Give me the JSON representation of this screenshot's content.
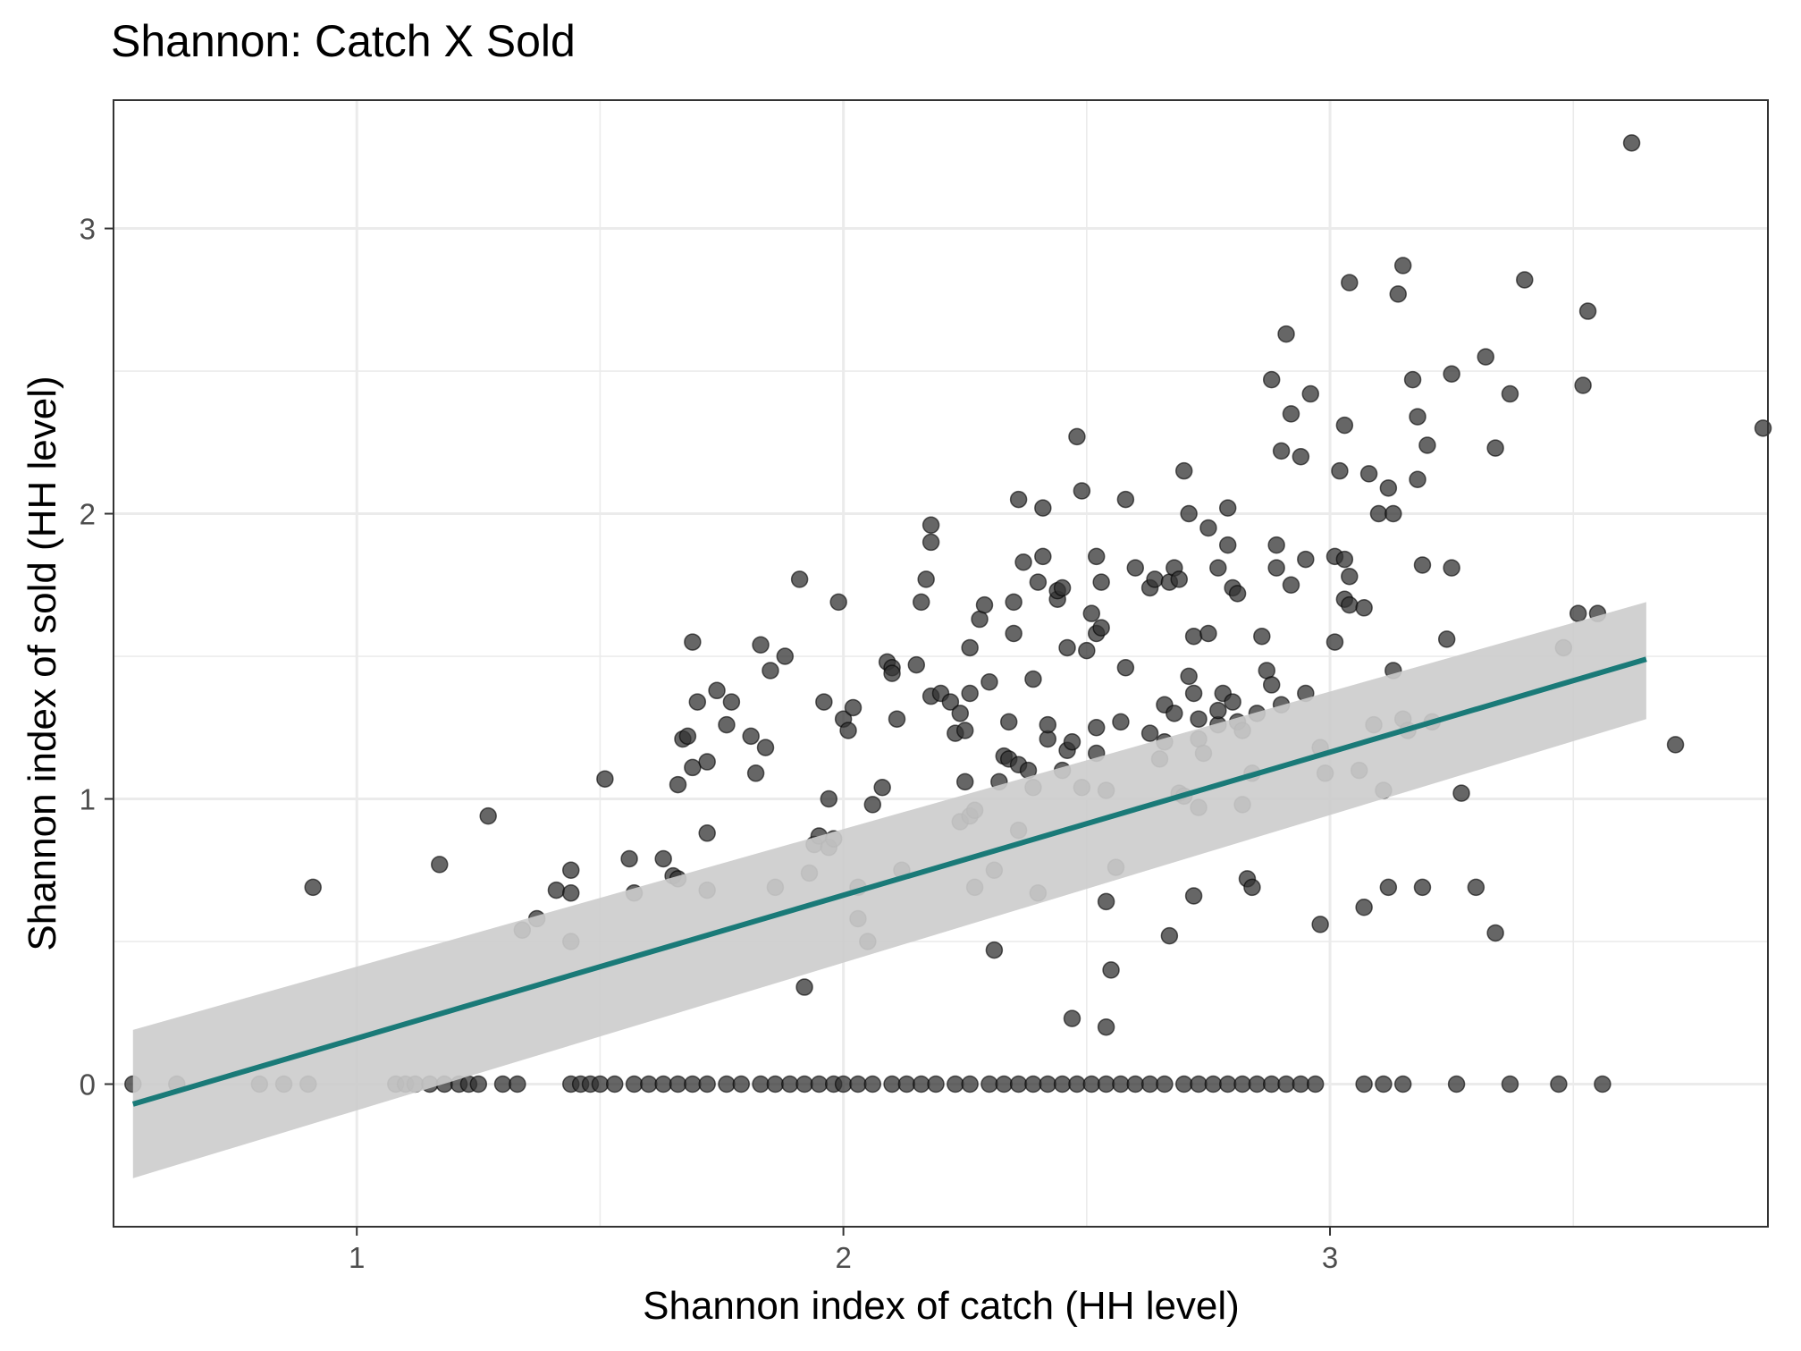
{
  "chart_data": {
    "type": "scatter",
    "title": "Shannon: Catch X Sold",
    "xlabel": "Shannon index of catch (HH level)",
    "ylabel": "Shannon index of sold (HH level)",
    "xlim": [
      0.5,
      3.9
    ],
    "ylim": [
      -0.5,
      3.45
    ],
    "x_ticks": [
      1,
      2,
      3
    ],
    "x_tick_labels": [
      "1",
      "2",
      "3"
    ],
    "y_ticks": [
      0,
      1,
      2,
      3
    ],
    "y_tick_labels": [
      "0",
      "1",
      "2",
      "3"
    ],
    "grid": true,
    "colors": {
      "points": "#333333",
      "fit_line": "#1a7a78",
      "confidence_band": "#cccccc",
      "grid": "#ebebeb",
      "panel_border": "#333333"
    },
    "fit": {
      "x": [
        0.54,
        3.65
      ],
      "y": [
        -0.07,
        1.49
      ],
      "ci_lower": [
        -0.33,
        1.28
      ],
      "ci_upper": [
        0.19,
        1.69
      ]
    },
    "points": [
      [
        0.54,
        0
      ],
      [
        0.63,
        0
      ],
      [
        0.8,
        0
      ],
      [
        0.85,
        0
      ],
      [
        0.9,
        0
      ],
      [
        0.91,
        0.69
      ],
      [
        1.08,
        0
      ],
      [
        1.1,
        0
      ],
      [
        1.12,
        0
      ],
      [
        1.15,
        0
      ],
      [
        1.18,
        0
      ],
      [
        1.21,
        0
      ],
      [
        1.23,
        0
      ],
      [
        1.25,
        0
      ],
      [
        1.3,
        0
      ],
      [
        1.33,
        0
      ],
      [
        1.44,
        0
      ],
      [
        1.46,
        0
      ],
      [
        1.48,
        0
      ],
      [
        1.5,
        0
      ],
      [
        1.53,
        0
      ],
      [
        1.57,
        0
      ],
      [
        1.6,
        0
      ],
      [
        1.63,
        0
      ],
      [
        1.66,
        0
      ],
      [
        1.69,
        0
      ],
      [
        1.72,
        0
      ],
      [
        1.76,
        0
      ],
      [
        1.79,
        0
      ],
      [
        1.83,
        0
      ],
      [
        1.86,
        0
      ],
      [
        1.89,
        0
      ],
      [
        1.92,
        0
      ],
      [
        1.95,
        0
      ],
      [
        1.98,
        0
      ],
      [
        2.0,
        0
      ],
      [
        2.03,
        0
      ],
      [
        2.06,
        0
      ],
      [
        2.1,
        0
      ],
      [
        2.13,
        0
      ],
      [
        2.16,
        0
      ],
      [
        2.19,
        0
      ],
      [
        2.23,
        0
      ],
      [
        2.26,
        0
      ],
      [
        2.3,
        0
      ],
      [
        2.33,
        0
      ],
      [
        2.36,
        0
      ],
      [
        2.39,
        0
      ],
      [
        2.42,
        0
      ],
      [
        2.45,
        0
      ],
      [
        2.48,
        0
      ],
      [
        2.51,
        0
      ],
      [
        2.54,
        0
      ],
      [
        2.57,
        0
      ],
      [
        2.6,
        0
      ],
      [
        2.63,
        0
      ],
      [
        2.66,
        0
      ],
      [
        2.7,
        0
      ],
      [
        2.73,
        0
      ],
      [
        2.76,
        0
      ],
      [
        2.79,
        0
      ],
      [
        2.82,
        0
      ],
      [
        2.85,
        0
      ],
      [
        2.88,
        0
      ],
      [
        2.91,
        0
      ],
      [
        2.94,
        0
      ],
      [
        2.97,
        0
      ],
      [
        3.07,
        0
      ],
      [
        3.11,
        0
      ],
      [
        3.15,
        0
      ],
      [
        3.26,
        0
      ],
      [
        3.37,
        0
      ],
      [
        3.47,
        0
      ],
      [
        3.56,
        0
      ],
      [
        1.17,
        0.77
      ],
      [
        1.27,
        0.94
      ],
      [
        1.34,
        0.54
      ],
      [
        1.37,
        0.58
      ],
      [
        1.41,
        0.68
      ],
      [
        1.44,
        0.75
      ],
      [
        1.44,
        0.67
      ],
      [
        1.44,
        0.5
      ],
      [
        1.51,
        1.07
      ],
      [
        1.56,
        0.79
      ],
      [
        1.57,
        0.67
      ],
      [
        1.63,
        0.79
      ],
      [
        1.65,
        0.73
      ],
      [
        1.66,
        0.72
      ],
      [
        1.66,
        1.05
      ],
      [
        1.67,
        1.21
      ],
      [
        1.68,
        1.22
      ],
      [
        1.69,
        1.11
      ],
      [
        1.69,
        1.55
      ],
      [
        1.7,
        1.34
      ],
      [
        1.72,
        1.13
      ],
      [
        1.72,
        0.88
      ],
      [
        1.72,
        0.68
      ],
      [
        1.74,
        1.38
      ],
      [
        1.76,
        1.26
      ],
      [
        1.77,
        1.34
      ],
      [
        1.81,
        1.22
      ],
      [
        1.82,
        1.09
      ],
      [
        1.83,
        1.54
      ],
      [
        1.84,
        1.18
      ],
      [
        1.85,
        1.45
      ],
      [
        1.86,
        0.69
      ],
      [
        1.88,
        1.5
      ],
      [
        1.91,
        1.77
      ],
      [
        1.92,
        0.34
      ],
      [
        1.93,
        0.74
      ],
      [
        1.94,
        0.84
      ],
      [
        1.95,
        0.87
      ],
      [
        1.96,
        1.34
      ],
      [
        1.97,
        0.83
      ],
      [
        1.97,
        1.0
      ],
      [
        1.98,
        0.86
      ],
      [
        1.99,
        1.69
      ],
      [
        2.0,
        1.28
      ],
      [
        2.01,
        1.24
      ],
      [
        2.02,
        1.32
      ],
      [
        2.03,
        0.58
      ],
      [
        2.03,
        0.69
      ],
      [
        2.05,
        0.5
      ],
      [
        2.06,
        0.98
      ],
      [
        2.08,
        1.04
      ],
      [
        2.09,
        1.48
      ],
      [
        2.1,
        1.46
      ],
      [
        2.1,
        1.44
      ],
      [
        2.11,
        1.28
      ],
      [
        2.12,
        0.75
      ],
      [
        2.15,
        1.47
      ],
      [
        2.16,
        1.69
      ],
      [
        2.17,
        1.77
      ],
      [
        2.18,
        1.96
      ],
      [
        2.18,
        1.9
      ],
      [
        2.18,
        1.36
      ],
      [
        2.2,
        1.37
      ],
      [
        2.22,
        1.34
      ],
      [
        2.23,
        1.23
      ],
      [
        2.24,
        0.92
      ],
      [
        2.24,
        1.3
      ],
      [
        2.25,
        1.06
      ],
      [
        2.25,
        1.24
      ],
      [
        2.26,
        1.53
      ],
      [
        2.26,
        1.37
      ],
      [
        2.26,
        0.94
      ],
      [
        2.27,
        0.96
      ],
      [
        2.27,
        0.69
      ],
      [
        2.28,
        1.63
      ],
      [
        2.29,
        1.68
      ],
      [
        2.3,
        1.41
      ],
      [
        2.31,
        0.75
      ],
      [
        2.31,
        0.47
      ],
      [
        2.32,
        1.06
      ],
      [
        2.33,
        1.15
      ],
      [
        2.34,
        1.14
      ],
      [
        2.34,
        1.27
      ],
      [
        2.35,
        1.69
      ],
      [
        2.35,
        1.58
      ],
      [
        2.36,
        1.12
      ],
      [
        2.36,
        0.89
      ],
      [
        2.36,
        2.05
      ],
      [
        2.37,
        1.83
      ],
      [
        2.38,
        1.1
      ],
      [
        2.39,
        1.04
      ],
      [
        2.39,
        1.42
      ],
      [
        2.4,
        1.76
      ],
      [
        2.4,
        0.67
      ],
      [
        2.41,
        1.85
      ],
      [
        2.41,
        2.02
      ],
      [
        2.42,
        1.21
      ],
      [
        2.42,
        1.26
      ],
      [
        2.44,
        1.7
      ],
      [
        2.44,
        1.73
      ],
      [
        2.45,
        1.74
      ],
      [
        2.45,
        1.1
      ],
      [
        2.46,
        1.53
      ],
      [
        2.46,
        1.17
      ],
      [
        2.47,
        1.2
      ],
      [
        2.47,
        0.23
      ],
      [
        2.48,
        2.27
      ],
      [
        2.49,
        2.08
      ],
      [
        2.49,
        1.04
      ],
      [
        2.5,
        1.52
      ],
      [
        2.51,
        1.65
      ],
      [
        2.52,
        1.85
      ],
      [
        2.52,
        1.16
      ],
      [
        2.52,
        1.25
      ],
      [
        2.52,
        1.58
      ],
      [
        2.53,
        1.6
      ],
      [
        2.53,
        1.76
      ],
      [
        2.54,
        1.03
      ],
      [
        2.54,
        0.64
      ],
      [
        2.54,
        0.2
      ],
      [
        2.55,
        0.4
      ],
      [
        2.56,
        0.76
      ],
      [
        2.57,
        1.27
      ],
      [
        2.58,
        1.46
      ],
      [
        2.58,
        2.05
      ],
      [
        2.6,
        1.81
      ],
      [
        2.63,
        1.74
      ],
      [
        2.63,
        1.23
      ],
      [
        2.64,
        1.77
      ],
      [
        2.65,
        1.14
      ],
      [
        2.66,
        1.33
      ],
      [
        2.66,
        1.2
      ],
      [
        2.67,
        1.76
      ],
      [
        2.67,
        0.52
      ],
      [
        2.68,
        1.3
      ],
      [
        2.68,
        1.81
      ],
      [
        2.69,
        1.77
      ],
      [
        2.69,
        1.02
      ],
      [
        2.7,
        1.01
      ],
      [
        2.7,
        2.15
      ],
      [
        2.71,
        1.43
      ],
      [
        2.71,
        2.0
      ],
      [
        2.72,
        0.66
      ],
      [
        2.72,
        1.37
      ],
      [
        2.72,
        1.57
      ],
      [
        2.73,
        1.28
      ],
      [
        2.73,
        1.21
      ],
      [
        2.73,
        0.97
      ],
      [
        2.74,
        1.16
      ],
      [
        2.75,
        1.95
      ],
      [
        2.75,
        1.58
      ],
      [
        2.77,
        1.26
      ],
      [
        2.77,
        1.31
      ],
      [
        2.77,
        1.81
      ],
      [
        2.78,
        1.37
      ],
      [
        2.79,
        2.02
      ],
      [
        2.79,
        1.89
      ],
      [
        2.8,
        1.34
      ],
      [
        2.8,
        1.74
      ],
      [
        2.81,
        1.27
      ],
      [
        2.81,
        1.72
      ],
      [
        2.82,
        1.24
      ],
      [
        2.82,
        0.98
      ],
      [
        2.83,
        0.72
      ],
      [
        2.84,
        0.69
      ],
      [
        2.84,
        1.09
      ],
      [
        2.85,
        1.3
      ],
      [
        2.86,
        1.57
      ],
      [
        2.87,
        1.45
      ],
      [
        2.88,
        1.4
      ],
      [
        2.88,
        2.47
      ],
      [
        2.89,
        1.81
      ],
      [
        2.89,
        1.89
      ],
      [
        2.9,
        2.22
      ],
      [
        2.9,
        1.33
      ],
      [
        2.91,
        2.63
      ],
      [
        2.92,
        2.35
      ],
      [
        2.92,
        1.75
      ],
      [
        2.94,
        2.2
      ],
      [
        2.95,
        1.84
      ],
      [
        2.95,
        1.37
      ],
      [
        2.96,
        2.42
      ],
      [
        2.98,
        1.18
      ],
      [
        2.98,
        0.56
      ],
      [
        2.99,
        1.09
      ],
      [
        3.01,
        1.85
      ],
      [
        3.01,
        1.55
      ],
      [
        3.02,
        2.15
      ],
      [
        3.03,
        2.31
      ],
      [
        3.03,
        1.84
      ],
      [
        3.03,
        1.7
      ],
      [
        3.04,
        1.78
      ],
      [
        3.04,
        1.68
      ],
      [
        3.04,
        2.81
      ],
      [
        3.06,
        1.1
      ],
      [
        3.07,
        1.67
      ],
      [
        3.07,
        0.62
      ],
      [
        3.08,
        2.14
      ],
      [
        3.09,
        1.26
      ],
      [
        3.1,
        2.0
      ],
      [
        3.11,
        1.03
      ],
      [
        3.12,
        0.69
      ],
      [
        3.12,
        2.09
      ],
      [
        3.13,
        2.0
      ],
      [
        3.13,
        1.45
      ],
      [
        3.14,
        2.77
      ],
      [
        3.15,
        1.28
      ],
      [
        3.15,
        2.87
      ],
      [
        3.16,
        1.24
      ],
      [
        3.17,
        2.47
      ],
      [
        3.18,
        2.34
      ],
      [
        3.18,
        2.12
      ],
      [
        3.19,
        1.82
      ],
      [
        3.19,
        0.69
      ],
      [
        3.2,
        2.24
      ],
      [
        3.21,
        1.27
      ],
      [
        3.24,
        1.56
      ],
      [
        3.25,
        2.49
      ],
      [
        3.25,
        1.81
      ],
      [
        3.27,
        1.02
      ],
      [
        3.3,
        0.69
      ],
      [
        3.32,
        2.55
      ],
      [
        3.34,
        2.23
      ],
      [
        3.34,
        0.53
      ],
      [
        3.37,
        2.42
      ],
      [
        3.4,
        2.82
      ],
      [
        3.48,
        1.53
      ],
      [
        3.51,
        1.65
      ],
      [
        3.52,
        2.45
      ],
      [
        3.53,
        2.71
      ],
      [
        3.55,
        1.65
      ],
      [
        3.62,
        3.3
      ],
      [
        3.71,
        1.19
      ],
      [
        3.89,
        2.3
      ]
    ]
  }
}
